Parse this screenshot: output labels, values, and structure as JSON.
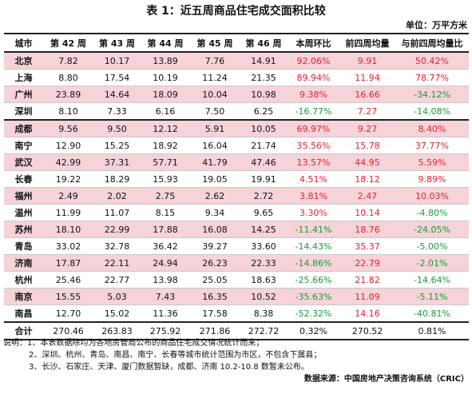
{
  "title": "表 1：近五周商品住宅成交面积比较",
  "unit": "单位：万平方米",
  "headers": [
    "城市",
    "第 42 周",
    "第 43 周",
    "第 44 周",
    "第 45 周",
    "第 46 周",
    "本周环比",
    "前四周均量",
    "与前四周均量比"
  ],
  "rows": [
    {
      "city": "北京",
      "w42": "7.82",
      "w43": "10.17",
      "w44": "13.89",
      "w45": "7.76",
      "w46": "14.91",
      "wow": "92.06%",
      "avg": "9.91",
      "vsavg": "50.42%",
      "hl": true
    },
    {
      "city": "上海",
      "w42": "8.80",
      "w43": "17.54",
      "w44": "10.19",
      "w45": "11.24",
      "w46": "21.35",
      "wow": "89.94%",
      "avg": "11.94",
      "vsavg": "78.77%",
      "hl": false
    },
    {
      "city": "广州",
      "w42": "23.89",
      "w43": "14.64",
      "w44": "18.09",
      "w45": "10.04",
      "w46": "10.98",
      "wow": "9.38%",
      "avg": "16.66",
      "vsavg": "-34.12%",
      "hl": true
    },
    {
      "city": "深圳",
      "w42": "8.10",
      "w43": "7.33",
      "w44": "6.16",
      "w45": "7.50",
      "w46": "6.25",
      "wow": "-16.77%",
      "avg": "7.27",
      "vsavg": "-14.08%",
      "hl": false
    },
    {
      "city": "成都",
      "w42": "9.56",
      "w43": "9.50",
      "w44": "12.12",
      "w45": "5.91",
      "w46": "10.05",
      "wow": "69.97%",
      "avg": "9.27",
      "vsavg": "8.40%",
      "hl": true,
      "gap": true
    },
    {
      "city": "南宁",
      "w42": "12.90",
      "w43": "15.25",
      "w44": "18.92",
      "w45": "16.04",
      "w46": "21.74",
      "wow": "35.56%",
      "avg": "15.78",
      "vsavg": "37.77%",
      "hl": false
    },
    {
      "city": "武汉",
      "w42": "42.99",
      "w43": "37.31",
      "w44": "57.71",
      "w45": "41.79",
      "w46": "47.46",
      "wow": "13.57%",
      "avg": "44.95",
      "vsavg": "5.59%",
      "hl": true
    },
    {
      "city": "长春",
      "w42": "19.22",
      "w43": "18.29",
      "w44": "15.93",
      "w45": "19.05",
      "w46": "19.91",
      "wow": "4.51%",
      "avg": "18.12",
      "vsavg": "9.89%",
      "hl": false
    },
    {
      "city": "福州",
      "w42": "2.49",
      "w43": "2.02",
      "w44": "2.75",
      "w45": "2.62",
      "w46": "2.72",
      "wow": "3.81%",
      "avg": "2.47",
      "vsavg": "10.03%",
      "hl": true
    },
    {
      "city": "温州",
      "w42": "11.99",
      "w43": "11.07",
      "w44": "8.15",
      "w45": "9.34",
      "w46": "9.65",
      "wow": "3.30%",
      "avg": "10.14",
      "vsavg": "-4.80%",
      "hl": false
    },
    {
      "city": "苏州",
      "w42": "18.10",
      "w43": "22.99",
      "w44": "17.88",
      "w45": "16.08",
      "w46": "14.25",
      "wow": "-11.41%",
      "avg": "18.76",
      "vsavg": "-24.05%",
      "hl": true
    },
    {
      "city": "青岛",
      "w42": "33.02",
      "w43": "32.78",
      "w44": "36.42",
      "w45": "39.27",
      "w46": "33.60",
      "wow": "-14.43%",
      "avg": "35.37",
      "vsavg": "-5.00%",
      "hl": false
    },
    {
      "city": "济南",
      "w42": "17.87",
      "w43": "22.11",
      "w44": "24.94",
      "w45": "26.23",
      "w46": "22.33",
      "wow": "-14.86%",
      "avg": "22.79",
      "vsavg": "-2.01%",
      "hl": true
    },
    {
      "city": "杭州",
      "w42": "25.46",
      "w43": "22.77",
      "w44": "13.98",
      "w45": "25.05",
      "w46": "18.63",
      "wow": "-25.66%",
      "avg": "21.82",
      "vsavg": "-14.64%",
      "hl": false
    },
    {
      "city": "南京",
      "w42": "15.55",
      "w43": "5.03",
      "w44": "7.43",
      "w45": "16.35",
      "w46": "10.52",
      "wow": "-35.63%",
      "avg": "11.09",
      "vsavg": "-5.11%",
      "hl": true
    },
    {
      "city": "南昌",
      "w42": "12.70",
      "w43": "15.02",
      "w44": "11.36",
      "w45": "17.58",
      "w46": "8.38",
      "wow": "-52.32%",
      "avg": "14.16",
      "vsavg": "-40.81%",
      "hl": false
    }
  ],
  "total": {
    "city": "合计",
    "w42": "270.46",
    "w43": "263.83",
    "w44": "275.92",
    "w45": "271.86",
    "w46": "272.72",
    "wow": "0.32%",
    "avg": "270.52",
    "vsavg": "0.81%"
  },
  "notes": {
    "n1": "说明：1、本表数据除均为各地房管局公布的商品住宅成交情况统计而来；",
    "n2": "2、深圳、杭州、青岛、南昌、南宁、长春等城市统计范围为市区，不包含下属县；",
    "n3": "3、长沙、石家庄、天津、厦门数据暂缺，成都、济南 10.2-10.8 数暂未公布。",
    "source": "数据来源：中国房地产决策咨询系统（CRIC）"
  },
  "colors": {
    "highlight": "#f5d3d9",
    "positive": "#e8202a",
    "negative": "#1a9a3c"
  }
}
